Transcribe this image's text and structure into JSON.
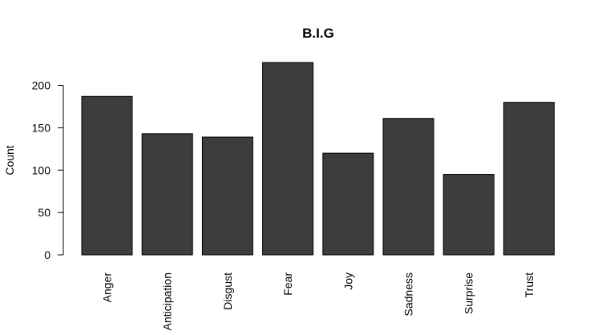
{
  "chart_data": {
    "type": "bar",
    "title": "B.I.G",
    "xlabel": "",
    "ylabel": "Count",
    "categories": [
      "Anger",
      "Anticipation",
      "Disgust",
      "Fear",
      "Joy",
      "Sadness",
      "Surprise",
      "Trust"
    ],
    "values": [
      187,
      143,
      139,
      227,
      120,
      161,
      95,
      180
    ],
    "ylim": [
      0,
      227
    ],
    "yticks": [
      0,
      50,
      100,
      150,
      200
    ],
    "bar_color": "#3d3d3d",
    "grid": false,
    "legend": "none"
  }
}
